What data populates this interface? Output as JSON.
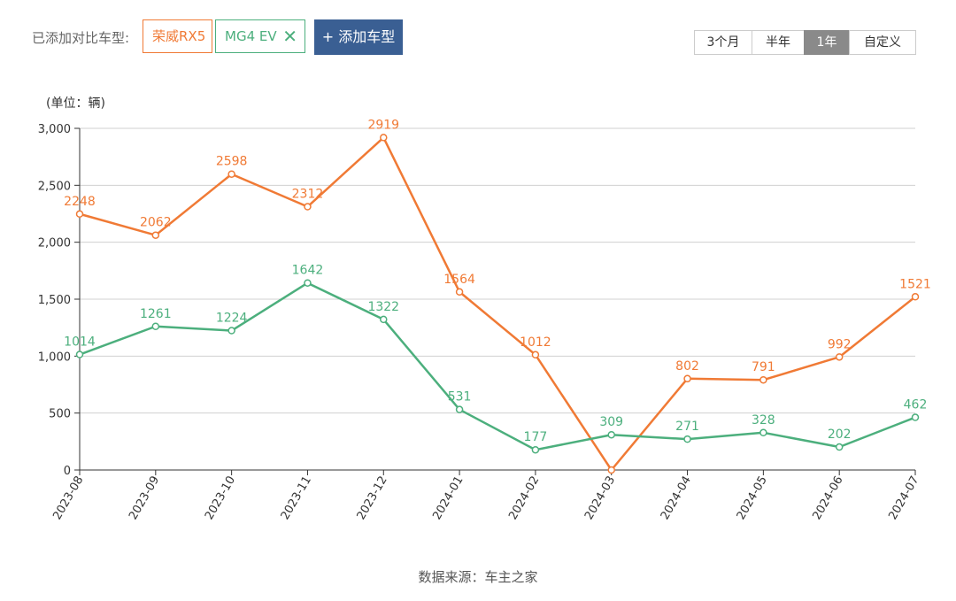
{
  "compare": {
    "label": "已添加对比车型:",
    "models": [
      {
        "name": "荣威RX5",
        "color": "#f07a35"
      },
      {
        "name": "MG4 EV",
        "color": "#4caf7d",
        "remove_icon": "close-icon"
      }
    ],
    "add_label": "+ 添加车型"
  },
  "range_tabs": {
    "items": [
      "3个月",
      "半年",
      "1年",
      "自定义"
    ],
    "active": "1年"
  },
  "chart_data": {
    "type": "line",
    "unit_label": "(单位：辆)",
    "categories": [
      "2023-08",
      "2023-09",
      "2023-10",
      "2023-11",
      "2023-12",
      "2024-01",
      "2024-02",
      "2024-03",
      "2024-04",
      "2024-05",
      "2024-06",
      "2024-07"
    ],
    "y_ticks": [
      "0",
      "500",
      "1,000",
      "1,500",
      "2,000",
      "2,500",
      "3,000"
    ],
    "ylim": [
      0,
      3000
    ],
    "grid": true,
    "series": [
      {
        "name": "荣威RX5",
        "color": "#f07a35",
        "values": [
          2248,
          2062,
          2598,
          2312,
          2919,
          1564,
          1012,
          0,
          802,
          791,
          992,
          1521
        ],
        "labels": [
          "2248",
          "2062",
          "2598",
          "2312",
          "2919",
          "1564",
          "1012",
          "",
          "802",
          "791",
          "992",
          "1521"
        ]
      },
      {
        "name": "MG4 EV",
        "color": "#4caf7d",
        "values": [
          1014,
          1261,
          1224,
          1642,
          1322,
          531,
          177,
          309,
          271,
          328,
          202,
          462
        ],
        "labels": [
          "1014",
          "1261",
          "1224",
          "1642",
          "1322",
          "531",
          "177",
          "309",
          "271",
          "328",
          "202",
          "462"
        ]
      }
    ]
  },
  "source": "数据来源：车主之家"
}
